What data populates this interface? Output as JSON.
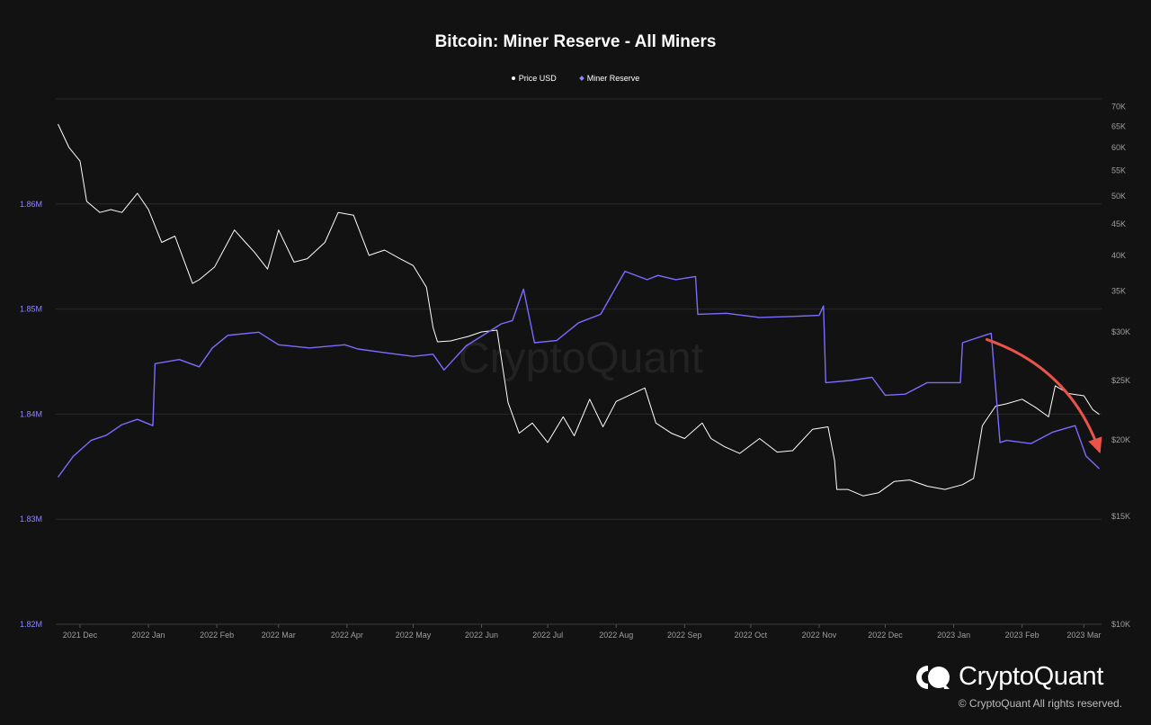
{
  "chart_data": {
    "type": "line",
    "title": "Bitcoin: Miner Reserve - All Miners",
    "legend_placement": "top-center",
    "grid": true,
    "x_ticks": [
      "2021 Dec",
      "2022 Jan",
      "2022 Feb",
      "2022 Mar",
      "2022 Apr",
      "2022 May",
      "2022 Jun",
      "2022 Jul",
      "2022 Aug",
      "2022 Sep",
      "2022 Oct",
      "2022 Nov",
      "2022 Dec",
      "2023 Jan",
      "2023 Feb",
      "2023 Mar"
    ],
    "y_left": {
      "ticks": [
        "1.82M",
        "1.83M",
        "1.84M",
        "1.85M",
        "1.86M"
      ],
      "ylim": [
        1820000,
        1870000
      ],
      "color": "#8d86ff"
    },
    "y_right": {
      "scale": "log",
      "ticks": [
        "$10K",
        "$15K",
        "$20K",
        "$25K",
        "$30K",
        "35K",
        "40K",
        "45K",
        "50K",
        "55K",
        "60K",
        "65K",
        "70K"
      ],
      "ylim": [
        10000,
        72000
      ],
      "color": "#9e9e9e"
    },
    "series": [
      {
        "name": "Price USD",
        "axis": "right",
        "color": "#ffffff",
        "x": [
          "2021-11-21",
          "2021-11-26",
          "2021-12-01",
          "2021-12-04",
          "2021-12-10",
          "2021-12-15",
          "2021-12-20",
          "2021-12-27",
          "2022-01-01",
          "2022-01-07",
          "2022-01-13",
          "2022-01-21",
          "2022-01-24",
          "2022-01-31",
          "2022-02-09",
          "2022-02-14",
          "2022-02-18",
          "2022-02-24",
          "2022-03-01",
          "2022-03-08",
          "2022-03-14",
          "2022-03-22",
          "2022-03-28",
          "2022-04-04",
          "2022-04-11",
          "2022-04-18",
          "2022-04-25",
          "2022-05-01",
          "2022-05-07",
          "2022-05-10",
          "2022-05-12",
          "2022-05-18",
          "2022-05-26",
          "2022-06-01",
          "2022-06-08",
          "2022-06-13",
          "2022-06-18",
          "2022-06-24",
          "2022-07-01",
          "2022-07-08",
          "2022-07-13",
          "2022-07-20",
          "2022-07-26",
          "2022-08-01",
          "2022-08-14",
          "2022-08-19",
          "2022-08-26",
          "2022-09-01",
          "2022-09-09",
          "2022-09-13",
          "2022-09-19",
          "2022-09-26",
          "2022-10-05",
          "2022-10-13",
          "2022-10-20",
          "2022-10-29",
          "2022-11-05",
          "2022-11-08",
          "2022-11-09",
          "2022-11-14",
          "2022-11-21",
          "2022-11-28",
          "2022-12-05",
          "2022-12-12",
          "2022-12-20",
          "2022-12-28",
          "2023-01-05",
          "2023-01-10",
          "2023-01-14",
          "2023-01-20",
          "2023-01-25",
          "2023-02-01",
          "2023-02-07",
          "2023-02-13",
          "2023-02-16",
          "2023-02-22",
          "2023-03-01",
          "2023-03-05",
          "2023-03-08"
        ],
        "values": [
          65500,
          60000,
          57000,
          49000,
          47000,
          47500,
          47000,
          50500,
          47500,
          42000,
          43000,
          36000,
          36500,
          38300,
          44000,
          42000,
          40500,
          38000,
          44000,
          39000,
          39500,
          42000,
          47000,
          46500,
          40000,
          40800,
          39500,
          38500,
          35500,
          30500,
          28900,
          29000,
          29500,
          30000,
          30200,
          23000,
          20500,
          21300,
          19800,
          21800,
          20300,
          23300,
          21000,
          23100,
          24300,
          21300,
          20500,
          20100,
          21300,
          20100,
          19500,
          19000,
          20100,
          19100,
          19200,
          20800,
          21000,
          18500,
          16600,
          16600,
          16200,
          16400,
          17100,
          17200,
          16800,
          16600,
          16900,
          17300,
          21100,
          22700,
          22900,
          23300,
          22600,
          21800,
          24500,
          23800,
          23600,
          22400,
          22000
        ]
      },
      {
        "name": "Miner Reserve",
        "axis": "left",
        "color": "#7b6cff",
        "x": [
          "2021-11-21",
          "2021-11-28",
          "2021-12-06",
          "2021-12-13",
          "2021-12-20",
          "2021-12-27",
          "2022-01-03",
          "2022-01-04",
          "2022-01-15",
          "2022-01-24",
          "2022-01-30",
          "2022-02-06",
          "2022-02-20",
          "2022-03-01",
          "2022-03-15",
          "2022-03-31",
          "2022-04-06",
          "2022-04-20",
          "2022-05-01",
          "2022-05-10",
          "2022-05-15",
          "2022-05-25",
          "2022-06-10",
          "2022-06-15",
          "2022-06-20",
          "2022-06-25",
          "2022-07-05",
          "2022-07-15",
          "2022-07-25",
          "2022-08-05",
          "2022-08-15",
          "2022-08-20",
          "2022-08-28",
          "2022-09-06",
          "2022-09-07",
          "2022-09-20",
          "2022-10-05",
          "2022-10-20",
          "2022-11-01",
          "2022-11-03",
          "2022-11-04",
          "2022-11-15",
          "2022-11-25",
          "2022-12-01",
          "2022-12-10",
          "2022-12-20",
          "2023-01-01",
          "2023-01-04",
          "2023-01-05",
          "2023-01-15",
          "2023-01-18",
          "2023-01-22",
          "2023-01-25",
          "2023-02-05",
          "2023-02-15",
          "2023-02-25",
          "2023-03-02",
          "2023-03-07",
          "2023-03-08"
        ],
        "values": [
          1834000,
          1836000,
          1837500,
          1838000,
          1839000,
          1839500,
          1838900,
          1844800,
          1845200,
          1844500,
          1846300,
          1847500,
          1847800,
          1846600,
          1846300,
          1846600,
          1846200,
          1845800,
          1845500,
          1845700,
          1844200,
          1846500,
          1848600,
          1848900,
          1851900,
          1846800,
          1847000,
          1848700,
          1849500,
          1853600,
          1852800,
          1853200,
          1852800,
          1853100,
          1849500,
          1849600,
          1849200,
          1849300,
          1849400,
          1850300,
          1843000,
          1843200,
          1843500,
          1841800,
          1841900,
          1843000,
          1843000,
          1843000,
          1846800,
          1847500,
          1847700,
          1837300,
          1837500,
          1837200,
          1838300,
          1838900,
          1836000,
          1835000,
          1834800
        ]
      }
    ],
    "annotation": {
      "type": "arrow",
      "color": "#e8544a",
      "from_x": "2023-01-16",
      "from_y": 1847100,
      "to_x": "2023-03-08",
      "to_y": 1836500
    }
  },
  "brand": {
    "name": "CryptoQuant",
    "copyright": "© CryptoQuant All rights reserved.",
    "watermark": "CryptoQuant"
  }
}
